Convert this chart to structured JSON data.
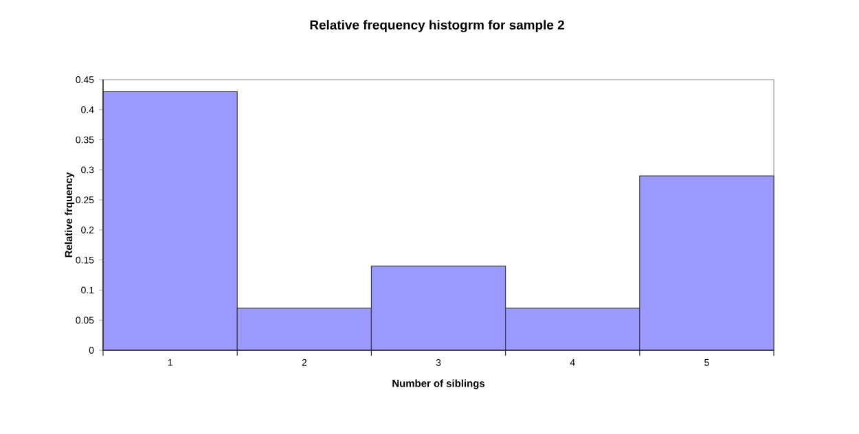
{
  "chart_data": {
    "type": "bar",
    "title": "Relative frequency histogrm for sample 2",
    "xlabel": "Number of siblings",
    "ylabel": "Relative frquency",
    "categories": [
      "1",
      "2",
      "3",
      "4",
      "5"
    ],
    "values": [
      0.43,
      0.07,
      0.14,
      0.07,
      0.29
    ],
    "color": "#9999ff",
    "ylim": [
      0,
      0.45
    ],
    "yticks": [
      0,
      0.05,
      0.1,
      0.15,
      0.2,
      0.25,
      0.3,
      0.35,
      0.4,
      0.45
    ],
    "grid": false
  }
}
